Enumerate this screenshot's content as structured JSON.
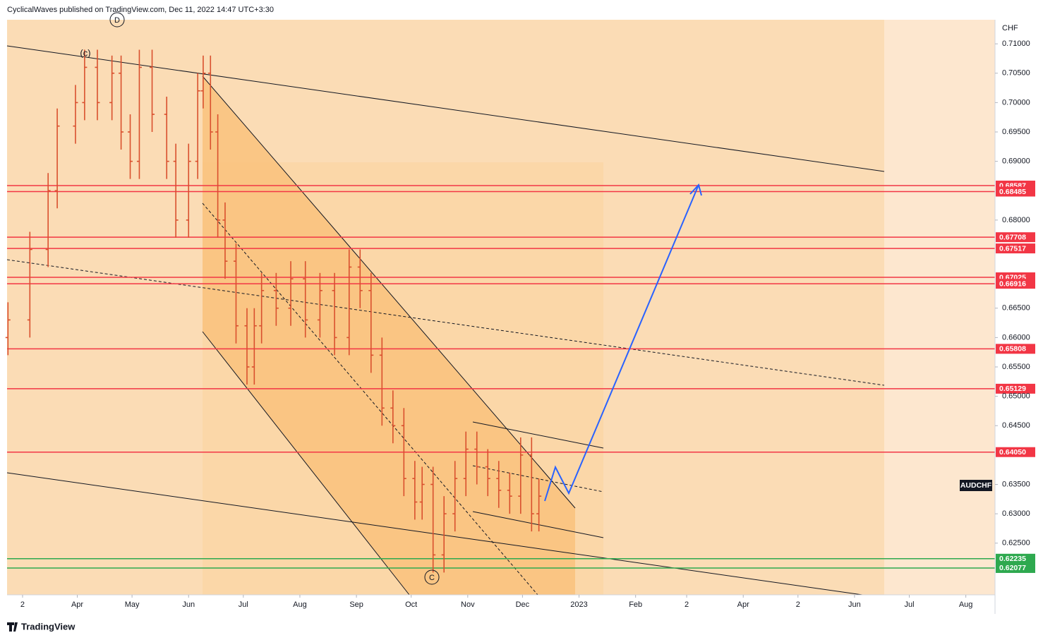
{
  "header": {
    "text": "CyclicalWaves published on TradingView.com, Dec 11, 2022 14:47 UTC+3:30"
  },
  "footer": {
    "brand": "TradingView"
  },
  "chart_data": {
    "type": "ohlc",
    "symbol": "AUDCHF",
    "y_unit": "CHF",
    "color": "#d9502e",
    "grid": false,
    "x": [
      -7,
      5,
      15,
      20,
      30,
      35,
      42,
      50,
      55,
      60,
      65,
      72,
      80,
      85,
      92,
      97,
      100,
      104,
      108,
      112,
      118,
      124,
      128,
      132,
      140,
      148,
      156,
      164,
      172,
      180,
      186,
      192,
      198,
      204,
      210,
      216,
      220,
      226,
      232,
      238,
      244,
      250,
      256,
      262,
      268,
      274,
      280,
      284
    ],
    "open": [
      0.66,
      0.663,
      0.675,
      0.685,
      0.696,
      0.7,
      0.706,
      0.7,
      0.705,
      0.695,
      0.69,
      0.706,
      0.698,
      0.69,
      0.68,
      0.69,
      0.702,
      0.705,
      0.695,
      0.68,
      0.673,
      0.662,
      0.655,
      0.662,
      0.668,
      0.665,
      0.67,
      0.663,
      0.668,
      0.66,
      0.672,
      0.668,
      0.657,
      0.648,
      0.645,
      0.636,
      0.632,
      0.635,
      0.623,
      0.63,
      0.636,
      0.641,
      0.638,
      0.636,
      0.634,
      0.633,
      0.64,
      0.63
    ],
    "high": [
      0.666,
      0.678,
      0.688,
      0.699,
      0.703,
      0.709,
      0.709,
      0.708,
      0.708,
      0.698,
      0.709,
      0.709,
      0.701,
      0.693,
      0.693,
      0.705,
      0.708,
      0.708,
      0.698,
      0.683,
      0.676,
      0.665,
      0.665,
      0.671,
      0.671,
      0.673,
      0.673,
      0.671,
      0.671,
      0.675,
      0.675,
      0.671,
      0.66,
      0.651,
      0.648,
      0.639,
      0.638,
      0.638,
      0.633,
      0.639,
      0.644,
      0.644,
      0.641,
      0.639,
      0.637,
      0.643,
      0.643,
      0.636
    ],
    "low": [
      0.657,
      0.66,
      0.672,
      0.682,
      0.693,
      0.697,
      0.697,
      0.697,
      0.692,
      0.687,
      0.687,
      0.695,
      0.687,
      0.677,
      0.677,
      0.687,
      0.699,
      0.692,
      0.677,
      0.67,
      0.659,
      0.652,
      0.652,
      0.659,
      0.662,
      0.662,
      0.66,
      0.66,
      0.657,
      0.657,
      0.665,
      0.654,
      0.645,
      0.642,
      0.633,
      0.629,
      0.629,
      0.62,
      0.62,
      0.627,
      0.633,
      0.635,
      0.633,
      0.631,
      0.63,
      0.63,
      0.627,
      0.627
    ],
    "close": [
      0.663,
      0.675,
      0.685,
      0.696,
      0.7,
      0.706,
      0.7,
      0.705,
      0.695,
      0.69,
      0.706,
      0.698,
      0.69,
      0.68,
      0.69,
      0.702,
      0.705,
      0.695,
      0.68,
      0.673,
      0.662,
      0.655,
      0.662,
      0.668,
      0.665,
      0.67,
      0.663,
      0.668,
      0.66,
      0.672,
      0.668,
      0.657,
      0.648,
      0.645,
      0.636,
      0.632,
      0.635,
      0.623,
      0.63,
      0.636,
      0.641,
      0.638,
      0.636,
      0.634,
      0.633,
      0.64,
      0.63,
      0.633
    ],
    "xlim": [
      -7.5,
      534
    ],
    "xticks": [
      {
        "value": 1,
        "label": "2"
      },
      {
        "value": 31,
        "label": "Apr"
      },
      {
        "value": 61,
        "label": "May"
      },
      {
        "value": 92,
        "label": "Jun"
      },
      {
        "value": 122,
        "label": "Jul"
      },
      {
        "value": 153,
        "label": "Aug"
      },
      {
        "value": 184,
        "label": "Sep"
      },
      {
        "value": 214,
        "label": "Oct"
      },
      {
        "value": 245,
        "label": "Nov"
      },
      {
        "value": 275,
        "label": "Dec"
      },
      {
        "value": 306,
        "label": "2023"
      },
      {
        "value": 337,
        "label": "Feb"
      },
      {
        "value": 365,
        "label": "2"
      },
      {
        "value": 396,
        "label": "Apr"
      },
      {
        "value": 426,
        "label": "2"
      },
      {
        "value": 457,
        "label": "Jun"
      },
      {
        "value": 487,
        "label": "Jul"
      },
      {
        "value": 518,
        "label": "Aug"
      }
    ],
    "ylim": [
      0.6162,
      0.7141
    ],
    "yticks": [
      {
        "value": 0.71,
        "label": "0.71000"
      },
      {
        "value": 0.705,
        "label": "0.70500"
      },
      {
        "value": 0.7,
        "label": "0.70000"
      },
      {
        "value": 0.695,
        "label": "0.69500"
      },
      {
        "value": 0.69,
        "label": "0.69000"
      },
      {
        "value": 0.68,
        "label": "0.68000"
      },
      {
        "value": 0.665,
        "label": "0.66500"
      },
      {
        "value": 0.66,
        "label": "0.66000"
      },
      {
        "value": 0.655,
        "label": "0.65500"
      },
      {
        "value": 0.65,
        "label": "0.65000"
      },
      {
        "value": 0.645,
        "label": "0.64500"
      },
      {
        "value": 0.635,
        "label": "0.63500"
      },
      {
        "value": 0.63,
        "label": "0.63000"
      },
      {
        "value": 0.625,
        "label": "0.62500"
      }
    ],
    "levels": [
      {
        "value": 0.68587,
        "color": "#f23645"
      },
      {
        "value": 0.68485,
        "color": "#f23645"
      },
      {
        "value": 0.67708,
        "color": "#f23645"
      },
      {
        "value": 0.67517,
        "color": "#f23645"
      },
      {
        "value": 0.67025,
        "color": "#f23645"
      },
      {
        "value": 0.66916,
        "color": "#f23645"
      },
      {
        "value": 0.65808,
        "color": "#f23645"
      },
      {
        "value": 0.65129,
        "color": "#f23645"
      },
      {
        "value": {
          "value": 0.6405,
          "label": "0.64050"
        },
        "color": "#f23645"
      },
      {
        "value": 0.62235,
        "color": "#2ea94f"
      },
      {
        "value": 0.62077,
        "color": "#2ea94f"
      }
    ],
    "annotations": [
      {
        "label": "D"
      },
      {
        "label": "(c)"
      },
      {
        "label": "C"
      }
    ]
  }
}
